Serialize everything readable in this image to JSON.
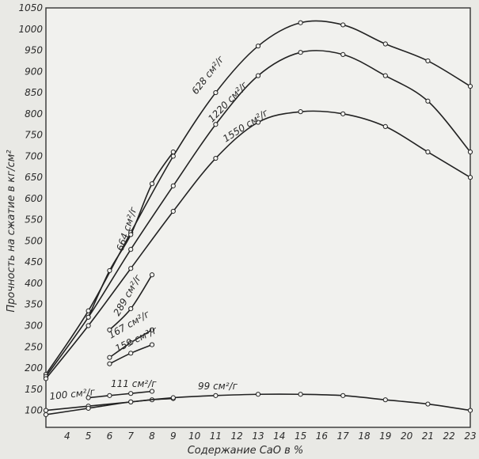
{
  "chart_data": {
    "type": "line",
    "xlabel": "Содержание CaO в %",
    "ylabel": "Прочность на сжатие в кг/см²",
    "xlim": [
      3,
      23
    ],
    "ylim": [
      60,
      1050
    ],
    "x_ticks": [
      4,
      5,
      6,
      7,
      8,
      9,
      10,
      11,
      12,
      13,
      14,
      15,
      16,
      17,
      18,
      19,
      20,
      21,
      22,
      23
    ],
    "y_ticks": [
      100,
      150,
      200,
      250,
      300,
      350,
      400,
      450,
      500,
      550,
      600,
      650,
      700,
      750,
      800,
      850,
      900,
      950,
      1000,
      1050
    ],
    "grid": true,
    "series": [
      {
        "name": "628 см²/г",
        "x": [
          3,
          5,
          7,
          9,
          11,
          13,
          15,
          17,
          19,
          21,
          23
        ],
        "y": [
          185,
          335,
          520,
          700,
          850,
          960,
          1015,
          1010,
          965,
          925,
          865
        ]
      },
      {
        "name": "1220 см²/г",
        "x": [
          3,
          5,
          7,
          9,
          11,
          13,
          15,
          17,
          19,
          21,
          23
        ],
        "y": [
          180,
          320,
          480,
          630,
          775,
          890,
          945,
          940,
          890,
          830,
          710
        ]
      },
      {
        "name": "1550 см²/г",
        "x": [
          3,
          5,
          7,
          9,
          11,
          13,
          15,
          17,
          19,
          21,
          23
        ],
        "y": [
          175,
          300,
          435,
          570,
          695,
          780,
          805,
          800,
          770,
          710,
          650
        ]
      },
      {
        "name": "664 см²/г",
        "x": [
          5,
          6,
          7,
          8,
          9
        ],
        "y": [
          320,
          430,
          515,
          635,
          710
        ]
      },
      {
        "name": "289 см²/г",
        "x": [
          6,
          7,
          8
        ],
        "y": [
          290,
          340,
          420
        ]
      },
      {
        "name": "167 см²/г",
        "x": [
          6,
          7,
          8
        ],
        "y": [
          225,
          260,
          290
        ]
      },
      {
        "name": "159 см²/г",
        "x": [
          6,
          7,
          8
        ],
        "y": [
          210,
          235,
          255
        ]
      },
      {
        "name": "111 см²/г",
        "x": [
          5,
          6,
          7,
          8
        ],
        "y": [
          130,
          135,
          140,
          145
        ]
      },
      {
        "name": "100 см²/г",
        "x": [
          3,
          5,
          7,
          8,
          9
        ],
        "y": [
          100,
          110,
          120,
          125,
          128
        ]
      },
      {
        "name": "99 см²/г",
        "x": [
          3,
          5,
          7,
          9,
          11,
          13,
          15,
          17,
          19,
          21,
          23
        ],
        "y": [
          90,
          105,
          120,
          130,
          135,
          138,
          138,
          135,
          125,
          115,
          100
        ]
      }
    ]
  }
}
